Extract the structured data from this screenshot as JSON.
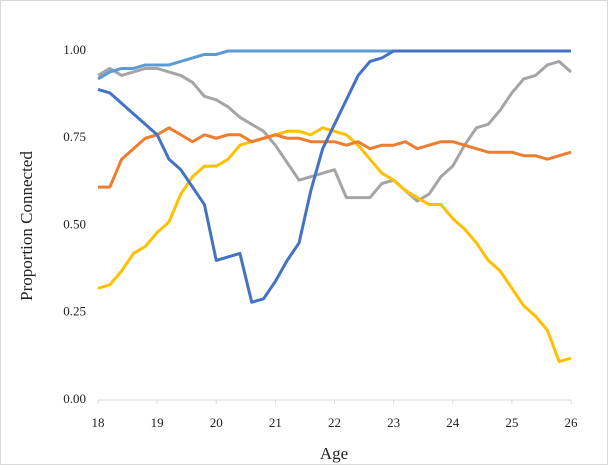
{
  "chart_data": {
    "type": "line",
    "xlabel": "Age",
    "ylabel": "Proportion Connected",
    "x": [
      18,
      18.2,
      18.4,
      18.6,
      18.8,
      19,
      19.2,
      19.4,
      19.6,
      19.8,
      20,
      20.2,
      20.4,
      20.6,
      20.8,
      21,
      21.2,
      21.4,
      21.6,
      21.8,
      22,
      22.2,
      22.4,
      22.6,
      22.8,
      23,
      23.2,
      23.4,
      23.6,
      23.8,
      24,
      24.2,
      24.4,
      24.6,
      24.8,
      25,
      25.2,
      25.4,
      25.6,
      25.8,
      26
    ],
    "series": [
      {
        "color": "#a5a5a5",
        "values": [
          0.93,
          0.95,
          0.93,
          0.94,
          0.95,
          0.95,
          0.94,
          0.93,
          0.91,
          0.87,
          0.86,
          0.84,
          0.81,
          0.79,
          0.77,
          0.73,
          0.68,
          0.63,
          0.64,
          0.65,
          0.66,
          0.58,
          0.58,
          0.58,
          0.62,
          0.63,
          0.6,
          0.57,
          0.59,
          0.64,
          0.67,
          0.73,
          0.78,
          0.79,
          0.83,
          0.88,
          0.92,
          0.93,
          0.96,
          0.97,
          0.94
        ]
      },
      {
        "color": "#ffc000",
        "values": [
          0.32,
          0.33,
          0.37,
          0.42,
          0.44,
          0.48,
          0.51,
          0.59,
          0.64,
          0.67,
          0.67,
          0.69,
          0.73,
          0.74,
          0.75,
          0.76,
          0.77,
          0.77,
          0.76,
          0.78,
          0.77,
          0.76,
          0.73,
          0.69,
          0.65,
          0.63,
          0.6,
          0.58,
          0.56,
          0.56,
          0.52,
          0.49,
          0.45,
          0.4,
          0.37,
          0.32,
          0.27,
          0.24,
          0.2,
          0.11,
          0.12
        ]
      },
      {
        "color": "#ed7d31",
        "values": [
          0.61,
          0.61,
          0.69,
          0.72,
          0.75,
          0.76,
          0.78,
          0.76,
          0.74,
          0.76,
          0.75,
          0.76,
          0.76,
          0.74,
          0.75,
          0.76,
          0.75,
          0.75,
          0.74,
          0.74,
          0.74,
          0.73,
          0.74,
          0.72,
          0.73,
          0.73,
          0.74,
          0.72,
          0.73,
          0.74,
          0.74,
          0.73,
          0.72,
          0.71,
          0.71,
          0.71,
          0.7,
          0.7,
          0.69,
          0.7,
          0.71
        ]
      },
      {
        "color": "#5b9bd5",
        "values": [
          0.92,
          0.94,
          0.95,
          0.95,
          0.96,
          0.96,
          0.96,
          0.97,
          0.98,
          0.99,
          0.99,
          1,
          1,
          1,
          1,
          1,
          1,
          1,
          1,
          1,
          1,
          1,
          1,
          1,
          1,
          1,
          1,
          1,
          1,
          1,
          1,
          1,
          1,
          1,
          1,
          1,
          1,
          1,
          1,
          1,
          1
        ]
      },
      {
        "color": "#4472c4",
        "values": [
          0.89,
          0.88,
          0.85,
          0.82,
          0.79,
          0.76,
          0.69,
          0.66,
          0.61,
          0.56,
          0.4,
          0.41,
          0.42,
          0.28,
          0.29,
          0.34,
          0.4,
          0.45,
          0.6,
          0.72,
          0.79,
          0.86,
          0.93,
          0.97,
          0.98,
          1,
          1,
          1,
          1,
          1,
          1,
          1,
          1,
          1,
          1,
          1,
          1,
          1,
          1,
          1,
          1
        ]
      }
    ],
    "xlim": [
      18,
      26
    ],
    "xticks": [
      18,
      19,
      20,
      21,
      22,
      23,
      24,
      25,
      26
    ],
    "ylim": [
      0,
      1
    ],
    "yticks": [
      {
        "value": 0,
        "label": "0.00"
      },
      {
        "value": 0.25,
        "label": "0.25"
      },
      {
        "value": 0.5,
        "label": "0.50"
      },
      {
        "value": 0.75,
        "label": "0.75"
      },
      {
        "value": 1,
        "label": "1.00"
      }
    ],
    "grid": false
  }
}
